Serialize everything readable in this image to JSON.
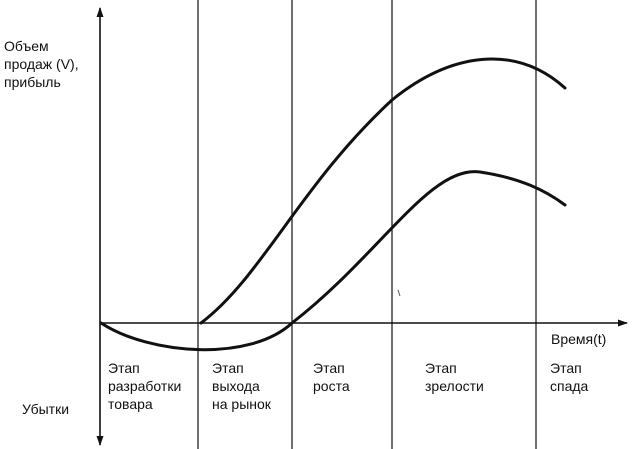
{
  "labels": {
    "y_axis": [
      "Объем",
      "продаж (V),",
      "прибыль"
    ],
    "x_axis": "Время(t)",
    "losses": "Убытки"
  },
  "stages": [
    {
      "lines": [
        "Этап",
        "разработки",
        "товара"
      ]
    },
    {
      "lines": [
        "Этап",
        "выхода",
        "на рынок"
      ]
    },
    {
      "lines": [
        "Этап",
        "роста"
      ]
    },
    {
      "lines": [
        "Этап",
        "зрелости"
      ]
    },
    {
      "lines": [
        "Этап",
        "спада"
      ]
    }
  ],
  "colors": {
    "ink": "#111111",
    "background": "#ffffff"
  }
}
